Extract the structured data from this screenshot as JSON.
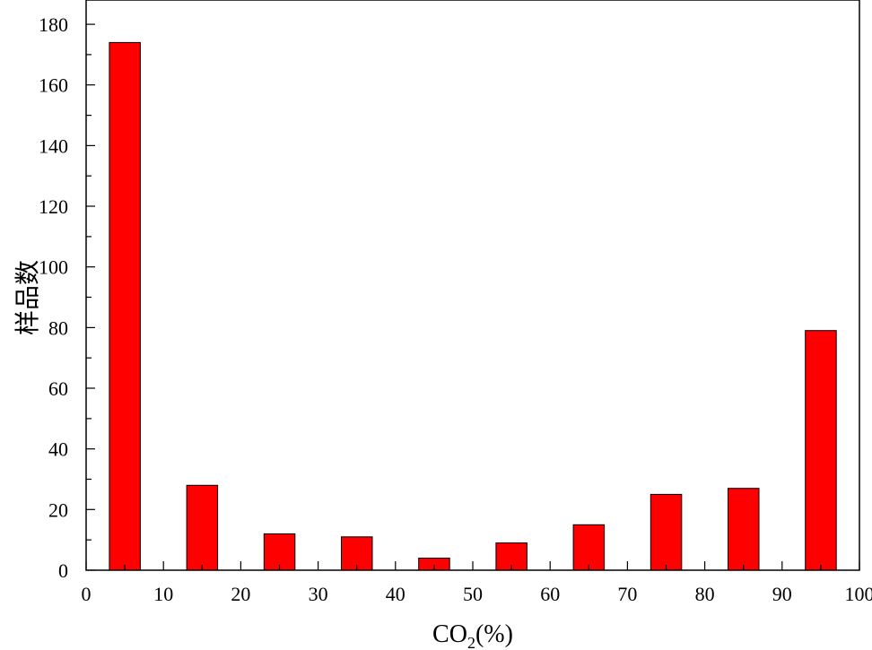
{
  "chart_data": {
    "type": "bar",
    "x": [
      5,
      15,
      25,
      35,
      45,
      55,
      65,
      75,
      85,
      95
    ],
    "values": [
      174,
      28,
      12,
      11,
      4,
      9,
      15,
      25,
      27,
      79
    ],
    "bar_width": 4,
    "xlabel": {
      "main": "CO",
      "sub": "2",
      "unit": "(%)"
    },
    "ylabel": "样品数",
    "xlim": [
      0,
      100
    ],
    "ylim": [
      0,
      188
    ],
    "xticks": [
      0,
      10,
      20,
      30,
      40,
      50,
      60,
      70,
      80,
      90,
      100
    ],
    "yticks": [
      0,
      20,
      40,
      60,
      80,
      100,
      120,
      140,
      160,
      180
    ],
    "grid": false,
    "bar_color": "#ff0000"
  }
}
